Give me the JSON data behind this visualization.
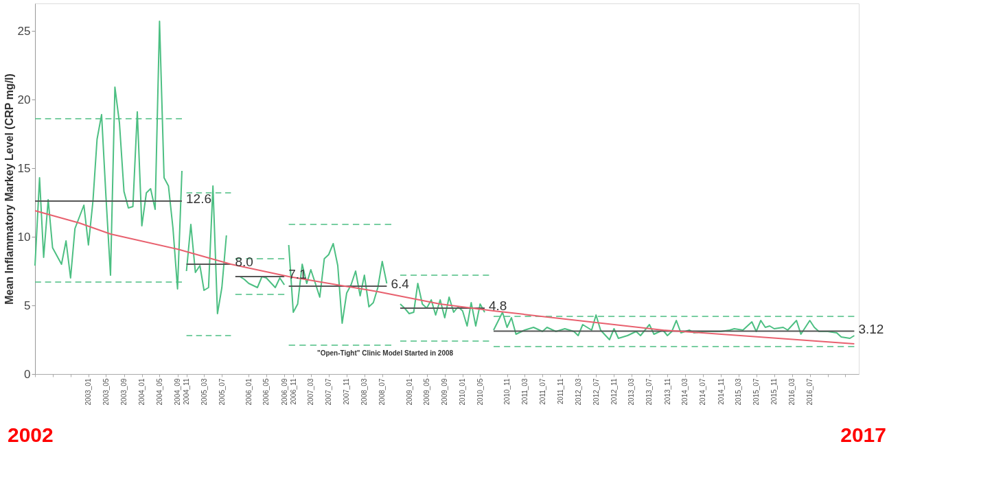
{
  "chart_data": {
    "type": "line",
    "ylabel": "Mean Inflammatory Markey Level (CRP mg/l)",
    "grid": false,
    "xlim": [
      "2002-01",
      "2017-06"
    ],
    "ylim": [
      0,
      27
    ],
    "yticks": [
      0,
      5,
      10,
      15,
      20,
      25
    ],
    "xticks": [
      {
        "value": "2002-01",
        "label": null
      },
      {
        "value": "2002-05",
        "label": null
      },
      {
        "value": "2002-09",
        "label": null
      },
      {
        "value": "2003-01",
        "label": "2003_01"
      },
      {
        "value": "2003-05",
        "label": "2003_05"
      },
      {
        "value": "2003-09",
        "label": "2003_09"
      },
      {
        "value": "2004-01",
        "label": "2004_01"
      },
      {
        "value": "2004-05",
        "label": "2004_05"
      },
      {
        "value": "2004-09",
        "label": "2004_09"
      },
      {
        "value": "2004-11",
        "label": "2004_11"
      },
      {
        "value": "2005-03",
        "label": "2005_03"
      },
      {
        "value": "2005-07",
        "label": "2005_07"
      },
      {
        "value": "2006-01",
        "label": "2006_01"
      },
      {
        "value": "2006-05",
        "label": "2006_05"
      },
      {
        "value": "2006-09",
        "label": "2006_09"
      },
      {
        "value": "2006-11",
        "label": "2006_11"
      },
      {
        "value": "2007-03",
        "label": "2007_03"
      },
      {
        "value": "2007-07",
        "label": "2007_07"
      },
      {
        "value": "2007-11",
        "label": "2007_11"
      },
      {
        "value": "2008-03",
        "label": "2008_03"
      },
      {
        "value": "2008-07",
        "label": "2008_07"
      },
      {
        "value": "2009-01",
        "label": "2009_01"
      },
      {
        "value": "2009-05",
        "label": "2009_05"
      },
      {
        "value": "2009-09",
        "label": "2009_09"
      },
      {
        "value": "2010-01",
        "label": "2010_01"
      },
      {
        "value": "2010-05",
        "label": "2010_05"
      },
      {
        "value": "2010-11",
        "label": "2010_11"
      },
      {
        "value": "2011-03",
        "label": "2011_03"
      },
      {
        "value": "2011-07",
        "label": "2011_07"
      },
      {
        "value": "2011-11",
        "label": "2011_11"
      },
      {
        "value": "2012-03",
        "label": "2012_03"
      },
      {
        "value": "2012-07",
        "label": "2012_07"
      },
      {
        "value": "2012-11",
        "label": "2012_11"
      },
      {
        "value": "2013-03",
        "label": "2013_03"
      },
      {
        "value": "2013-07",
        "label": "2013_07"
      },
      {
        "value": "2013-11",
        "label": "2013_11"
      },
      {
        "value": "2014-03",
        "label": "2014_03"
      },
      {
        "value": "2014-07",
        "label": "2014_07"
      },
      {
        "value": "2014-11",
        "label": "2014_11"
      },
      {
        "value": "2015-03",
        "label": "2015_03"
      },
      {
        "value": "2015-07",
        "label": "2015_07"
      },
      {
        "value": "2015-11",
        "label": "2015_11"
      },
      {
        "value": "2016-03",
        "label": "2016_03"
      },
      {
        "value": "2016-07",
        "label": "2016_07"
      },
      {
        "value": "2016-11",
        "label": null
      },
      {
        "value": "2017-03",
        "label": null
      }
    ],
    "series": [
      {
        "color": "#4cbf82",
        "x": [
          "2002-01",
          "2002-02",
          "2002-03",
          "2002-04",
          "2002-05",
          "2002-07",
          "2002-08",
          "2002-09",
          "2002-10",
          "2002-12",
          "2003-01",
          "2003-02",
          "2003-03",
          "2003-04",
          "2003-05",
          "2003-06",
          "2003-07",
          "2003-08",
          "2003-09",
          "2003-10",
          "2003-11",
          "2003-12",
          "2004-01",
          "2004-02",
          "2004-03",
          "2004-04",
          "2004-05",
          "2004-06",
          "2004-07",
          "2004-08",
          "2004-09",
          "2004-10"
        ],
        "values": [
          7.9,
          14.3,
          8.5,
          12.7,
          9.2,
          8.0,
          9.7,
          7.0,
          10.6,
          12.3,
          9.4,
          12.6,
          17.1,
          18.9,
          12.9,
          7.2,
          20.9,
          18.3,
          13.3,
          12.1,
          12.2,
          19.1,
          10.8,
          13.2,
          13.5,
          12.0,
          25.7,
          14.3,
          13.7,
          10.6,
          6.2,
          14.8
        ]
      },
      {
        "color": "#4cbf82",
        "x": [
          "2004-11",
          "2004-12",
          "2005-01",
          "2005-02",
          "2005-03",
          "2005-04",
          "2005-05",
          "2005-06",
          "2005-07",
          "2005-08"
        ],
        "values": [
          7.5,
          10.9,
          7.4,
          7.9,
          6.1,
          6.3,
          13.7,
          4.4,
          6.3,
          10.1
        ]
      },
      {
        "color": "#4cbf82",
        "x": [
          "2005-11",
          "2005-12",
          "2006-01",
          "2006-03",
          "2006-04",
          "2006-05",
          "2006-07",
          "2006-08",
          "2006-09"
        ],
        "values": [
          7.1,
          6.9,
          6.6,
          6.3,
          7.1,
          7.0,
          6.3,
          7.0,
          6.5
        ]
      },
      {
        "color": "#4cbf82",
        "x": [
          "2006-10",
          "2006-11",
          "2006-12",
          "2007-01",
          "2007-02",
          "2007-03",
          "2007-04",
          "2007-05",
          "2007-06",
          "2007-07",
          "2007-08",
          "2007-09",
          "2007-10",
          "2007-11",
          "2007-12",
          "2008-01",
          "2008-02",
          "2008-03",
          "2008-04",
          "2008-05",
          "2008-06",
          "2008-07",
          "2008-08"
        ],
        "values": [
          9.4,
          4.5,
          5.1,
          8.0,
          6.6,
          7.6,
          6.6,
          5.6,
          8.4,
          8.7,
          9.5,
          7.9,
          3.7,
          5.9,
          6.5,
          7.5,
          5.7,
          7.2,
          4.9,
          5.2,
          6.3,
          8.2,
          6.6
        ]
      },
      {
        "color": "#4cbf82",
        "x": [
          "2008-11",
          "2008-12",
          "2009-01",
          "2009-02",
          "2009-03",
          "2009-04",
          "2009-05",
          "2009-06",
          "2009-07",
          "2009-08",
          "2009-09",
          "2009-10",
          "2009-11",
          "2009-12",
          "2010-01",
          "2010-02",
          "2010-03",
          "2010-04",
          "2010-05",
          "2010-06"
        ],
        "values": [
          5.1,
          4.8,
          4.4,
          4.5,
          6.6,
          5.1,
          4.8,
          5.4,
          4.3,
          5.4,
          4.1,
          5.6,
          4.5,
          4.9,
          4.6,
          3.5,
          5.2,
          3.5,
          5.1,
          4.5
        ]
      },
      {
        "color": "#4cbf82",
        "x": [
          "2010-08",
          "2010-10",
          "2010-11",
          "2010-12",
          "2011-01",
          "2011-03",
          "2011-05",
          "2011-07",
          "2011-08",
          "2011-10",
          "2011-12",
          "2012-02",
          "2012-03",
          "2012-04",
          "2012-06",
          "2012-07",
          "2012-08",
          "2012-10",
          "2012-11",
          "2012-12",
          "2013-02",
          "2013-04",
          "2013-05",
          "2013-07",
          "2013-08",
          "2013-10",
          "2013-11",
          "2013-12",
          "2014-01",
          "2014-02",
          "2014-04",
          "2014-05",
          "2014-07",
          "2014-09",
          "2014-11",
          "2015-01",
          "2015-02",
          "2015-04",
          "2015-06",
          "2015-07",
          "2015-08",
          "2015-09",
          "2015-10",
          "2015-11",
          "2016-01",
          "2016-02",
          "2016-04",
          "2016-05",
          "2016-07",
          "2016-08",
          "2016-09",
          "2016-11",
          "2017-01",
          "2017-02",
          "2017-04",
          "2017-05"
        ],
        "values": [
          3.2,
          4.5,
          3.4,
          4.1,
          2.9,
          3.2,
          3.4,
          3.1,
          3.4,
          3.1,
          3.3,
          3.1,
          2.8,
          3.6,
          3.2,
          4.3,
          3.2,
          2.5,
          3.3,
          2.6,
          2.8,
          3.1,
          2.8,
          3.6,
          2.9,
          3.2,
          2.8,
          3.1,
          3.9,
          3.0,
          3.2,
          3.0,
          3.1,
          3.1,
          3.1,
          3.2,
          3.3,
          3.2,
          3.8,
          3.1,
          3.9,
          3.4,
          3.5,
          3.3,
          3.4,
          3.2,
          3.9,
          2.9,
          3.9,
          3.4,
          3.1,
          3.1,
          3.0,
          2.7,
          2.6,
          2.8
        ]
      },
      {
        "color": "#4cbf82",
        "line_style": "dashed",
        "x": [
          "2002-01",
          "2004-10"
        ],
        "values": [
          18.6,
          18.6
        ]
      },
      {
        "color": "#4cbf82",
        "line_style": "dashed",
        "x": [
          "2002-01",
          "2004-10"
        ],
        "values": [
          6.7,
          6.7
        ]
      },
      {
        "color": "#4cbf82",
        "line_style": "dashed",
        "x": [
          "2004-11",
          "2005-09"
        ],
        "values": [
          13.2,
          13.2
        ]
      },
      {
        "color": "#4cbf82",
        "line_style": "dashed",
        "x": [
          "2004-11",
          "2005-09"
        ],
        "values": [
          2.8,
          2.8
        ]
      },
      {
        "color": "#4cbf82",
        "line_style": "dashed",
        "x": [
          "2005-10",
          "2006-09"
        ],
        "values": [
          8.4,
          8.4
        ]
      },
      {
        "color": "#4cbf82",
        "line_style": "dashed",
        "x": [
          "2005-10",
          "2006-09"
        ],
        "values": [
          5.8,
          5.8
        ]
      },
      {
        "color": "#4cbf82",
        "line_style": "dashed",
        "x": [
          "2006-10",
          "2008-09"
        ],
        "values": [
          10.9,
          10.9
        ]
      },
      {
        "color": "#4cbf82",
        "line_style": "dashed",
        "x": [
          "2006-10",
          "2008-09"
        ],
        "values": [
          2.1,
          2.1
        ]
      },
      {
        "color": "#4cbf82",
        "line_style": "dashed",
        "x": [
          "2008-11",
          "2010-07"
        ],
        "values": [
          7.2,
          7.2
        ]
      },
      {
        "color": "#4cbf82",
        "line_style": "dashed",
        "x": [
          "2008-11",
          "2010-07"
        ],
        "values": [
          2.4,
          2.4
        ]
      },
      {
        "color": "#4cbf82",
        "line_style": "dashed",
        "x": [
          "2010-08",
          "2017-05"
        ],
        "values": [
          4.2,
          4.2
        ]
      },
      {
        "color": "#4cbf82",
        "line_style": "dashed",
        "x": [
          "2010-08",
          "2017-05"
        ],
        "values": [
          2.0,
          2.0
        ]
      },
      {
        "color": "#555555",
        "x": [
          "2002-01",
          "2004-10"
        ],
        "values": [
          12.6,
          12.6
        ]
      },
      {
        "color": "#555555",
        "x": [
          "2004-11",
          "2005-09"
        ],
        "values": [
          8.0,
          8.0
        ]
      },
      {
        "color": "#555555",
        "x": [
          "2005-10",
          "2006-09"
        ],
        "values": [
          7.1,
          7.1
        ]
      },
      {
        "color": "#555555",
        "x": [
          "2006-10",
          "2008-08"
        ],
        "values": [
          6.4,
          6.4
        ]
      },
      {
        "color": "#555555",
        "x": [
          "2008-11",
          "2010-06"
        ],
        "values": [
          4.8,
          4.8
        ]
      },
      {
        "color": "#555555",
        "x": [
          "2010-08",
          "2017-05"
        ],
        "values": [
          3.12,
          3.12
        ]
      },
      {
        "type": "line",
        "color": "#e8606e",
        "x": [
          "2002-01",
          "2002-11",
          "2003-06",
          "2004-09",
          "2005-09",
          "2006-10",
          "2008-06",
          "2009-08",
          "2010-08",
          "2013-10",
          "2017-05"
        ],
        "values": [
          11.9,
          11.0,
          10.2,
          9.1,
          8.0,
          7.1,
          6.0,
          5.1,
          4.6,
          3.2,
          2.2
        ]
      }
    ],
    "annotations": [
      {
        "text": "12.6",
        "x": "2004-10",
        "y": 12.6
      },
      {
        "text": "8.0",
        "x": "2005-09",
        "y": 8.0
      },
      {
        "text": "7.1",
        "x": "2006-09",
        "y": 7.1
      },
      {
        "text": "6.4",
        "x": "2008-08",
        "y": 6.4
      },
      {
        "text": "4.8",
        "x": "2010-06",
        "y": 4.8
      },
      {
        "text": "3.12",
        "x": "2017-05",
        "y": 3.12
      },
      "\"Open-Tight\" Clinic Model  Started in 2008",
      "2002",
      "2017"
    ]
  }
}
